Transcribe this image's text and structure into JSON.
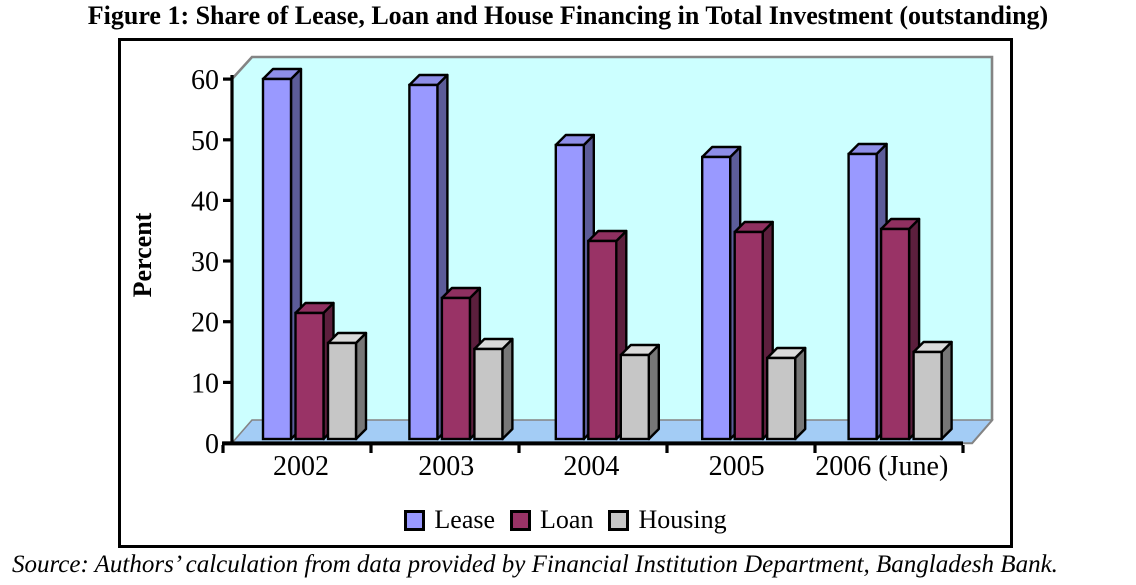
{
  "figure": {
    "title": "Figure 1: Share of Lease, Loan and House Financing in Total Investment (outstanding)",
    "source_note": "Source: Authors’ calculation from data provided by Financial Institution Department, Bangladesh Bank."
  },
  "chart_data": {
    "type": "bar",
    "style": "3d-clustered",
    "title": "Share of Lease, Loan and House Financing in Total Investment (outstanding)",
    "categories": [
      "2002",
      "2003",
      "2004",
      "2005",
      "2006 (June)"
    ],
    "series": [
      {
        "name": "Lease",
        "color": "#9999FF",
        "side_color": "#5C5C99",
        "top_color": "#8E8EE8",
        "values": [
          60,
          59,
          49,
          47,
          47.5
        ]
      },
      {
        "name": "Loan",
        "color": "#993366",
        "side_color": "#5C1F3D",
        "top_color": "#8F3060",
        "values": [
          21,
          23.5,
          33,
          34.5,
          35
        ]
      },
      {
        "name": "Housing",
        "color": "#C6C6C6",
        "side_color": "#777777",
        "top_color": "#DADADA",
        "values": [
          16,
          15,
          14,
          13.5,
          14.5
        ]
      }
    ],
    "xlabel": "",
    "ylabel": "Percent",
    "ylim": [
      0,
      60
    ],
    "yticks": [
      0,
      10,
      20,
      30,
      40,
      50,
      60
    ],
    "legend_position": "bottom",
    "legend_labels": [
      "Lease",
      "Loan",
      "Housing"
    ],
    "grid": false,
    "wall_color": "#CCFFFF",
    "floor_color": "#A3CCF5",
    "wall_border_color": "#848484",
    "axis_color": "#000000"
  }
}
